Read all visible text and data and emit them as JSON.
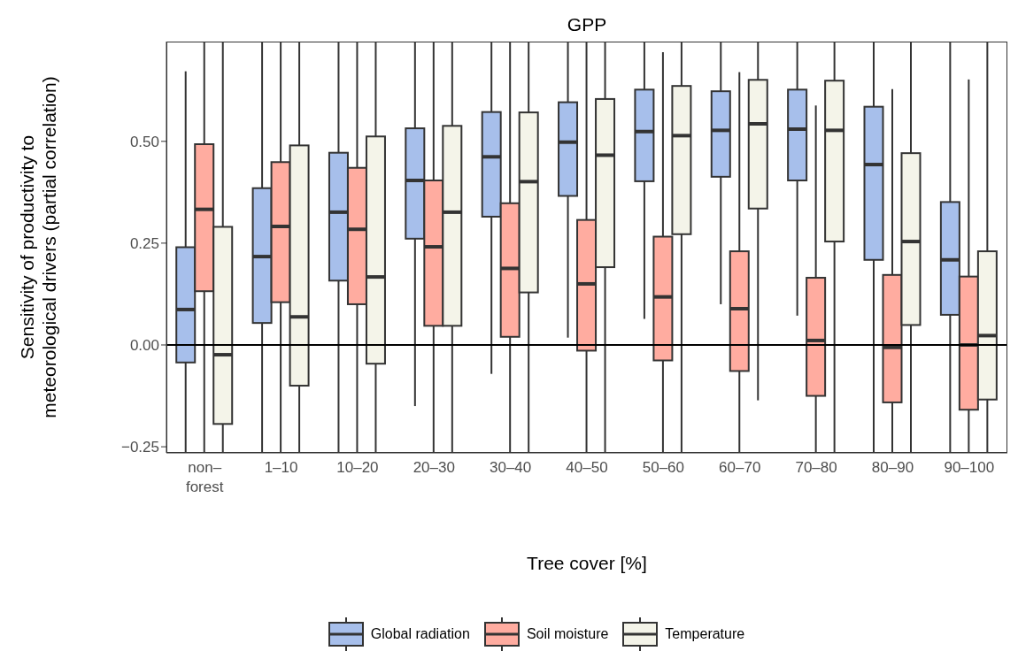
{
  "chart_data": {
    "type": "box",
    "title": "GPP",
    "xlabel": "Tree cover [%]",
    "ylabel": "Sensitivity of productivity to\nmeteorological drivers (partial correlation)",
    "categories": [
      "non–\nforest",
      "1–10",
      "10–20",
      "20–30",
      "30–40",
      "40–50",
      "50–60",
      "60–70",
      "70–80",
      "80–90",
      "90–100"
    ],
    "ylim": [
      -0.265,
      0.745
    ],
    "yticks": [
      {
        "value": -0.25,
        "label": "−0.25"
      },
      {
        "value": 0,
        "label": "0.00"
      },
      {
        "value": 0.25,
        "label": "0.25"
      },
      {
        "value": 0.5,
        "label": "0.50"
      }
    ],
    "ref_lines": [
      {
        "axis": "y",
        "value": 0,
        "color": "#000000"
      }
    ],
    "legend": "bottom",
    "series": [
      {
        "name": "Global radiation",
        "color": "#a7bfeb",
        "boxes": [
          {
            "low": -0.265,
            "q1": -0.043,
            "median": 0.087,
            "q3": 0.24,
            "high": 0.672
          },
          {
            "low": -0.265,
            "q1": 0.054,
            "median": 0.217,
            "q3": 0.385,
            "high": 0.745
          },
          {
            "low": -0.265,
            "q1": 0.158,
            "median": 0.326,
            "q3": 0.472,
            "high": 0.745
          },
          {
            "low": -0.15,
            "q1": 0.261,
            "median": 0.404,
            "q3": 0.532,
            "high": 0.745
          },
          {
            "low": -0.071,
            "q1": 0.315,
            "median": 0.462,
            "q3": 0.572,
            "high": 0.745
          },
          {
            "low": 0.018,
            "q1": 0.366,
            "median": 0.498,
            "q3": 0.596,
            "high": 0.745
          },
          {
            "low": 0.064,
            "q1": 0.402,
            "median": 0.524,
            "q3": 0.627,
            "high": 0.745
          },
          {
            "low": 0.1,
            "q1": 0.413,
            "median": 0.527,
            "q3": 0.623,
            "high": 0.745
          },
          {
            "low": 0.072,
            "q1": 0.404,
            "median": 0.53,
            "q3": 0.627,
            "high": 0.745
          },
          {
            "low": -0.265,
            "q1": 0.209,
            "median": 0.443,
            "q3": 0.585,
            "high": 0.745
          },
          {
            "low": -0.265,
            "q1": 0.074,
            "median": 0.209,
            "q3": 0.351,
            "high": 0.745
          }
        ]
      },
      {
        "name": "Soil moisture",
        "color": "#ffaca0",
        "boxes": [
          {
            "low": -0.265,
            "q1": 0.132,
            "median": 0.333,
            "q3": 0.493,
            "high": 0.745
          },
          {
            "low": -0.265,
            "q1": 0.105,
            "median": 0.291,
            "q3": 0.449,
            "high": 0.745
          },
          {
            "low": -0.265,
            "q1": 0.1,
            "median": 0.284,
            "q3": 0.435,
            "high": 0.745
          },
          {
            "low": -0.265,
            "q1": 0.047,
            "median": 0.241,
            "q3": 0.404,
            "high": 0.745
          },
          {
            "low": -0.265,
            "q1": 0.02,
            "median": 0.188,
            "q3": 0.348,
            "high": 0.745
          },
          {
            "low": -0.265,
            "q1": -0.014,
            "median": 0.15,
            "q3": 0.307,
            "high": 0.745
          },
          {
            "low": -0.265,
            "q1": -0.038,
            "median": 0.118,
            "q3": 0.266,
            "high": 0.719
          },
          {
            "low": -0.265,
            "q1": -0.064,
            "median": 0.089,
            "q3": 0.23,
            "high": 0.67
          },
          {
            "low": -0.265,
            "q1": -0.125,
            "median": 0.011,
            "q3": 0.165,
            "high": 0.588
          },
          {
            "low": -0.265,
            "q1": -0.141,
            "median": -0.006,
            "q3": 0.172,
            "high": 0.628
          },
          {
            "low": -0.265,
            "q1": -0.159,
            "median": 0.0,
            "q3": 0.168,
            "high": 0.652
          }
        ]
      },
      {
        "name": "Temperature",
        "color": "#f4f4e9",
        "boxes": [
          {
            "low": -0.265,
            "q1": -0.194,
            "median": -0.024,
            "q3": 0.29,
            "high": 0.745
          },
          {
            "low": -0.265,
            "q1": -0.1,
            "median": 0.069,
            "q3": 0.49,
            "high": 0.745
          },
          {
            "low": -0.265,
            "q1": -0.046,
            "median": 0.167,
            "q3": 0.512,
            "high": 0.745
          },
          {
            "low": -0.265,
            "q1": 0.047,
            "median": 0.326,
            "q3": 0.538,
            "high": 0.745
          },
          {
            "low": -0.265,
            "q1": 0.129,
            "median": 0.401,
            "q3": 0.571,
            "high": 0.745
          },
          {
            "low": -0.265,
            "q1": 0.191,
            "median": 0.466,
            "q3": 0.604,
            "high": 0.745
          },
          {
            "low": -0.265,
            "q1": 0.272,
            "median": 0.514,
            "q3": 0.636,
            "high": 0.745
          },
          {
            "low": -0.136,
            "q1": 0.335,
            "median": 0.543,
            "q3": 0.651,
            "high": 0.745
          },
          {
            "low": -0.265,
            "q1": 0.254,
            "median": 0.527,
            "q3": 0.649,
            "high": 0.745
          },
          {
            "low": -0.265,
            "q1": 0.049,
            "median": 0.254,
            "q3": 0.471,
            "high": 0.745
          },
          {
            "low": -0.265,
            "q1": -0.134,
            "median": 0.023,
            "q3": 0.23,
            "high": 0.745
          }
        ]
      }
    ]
  }
}
